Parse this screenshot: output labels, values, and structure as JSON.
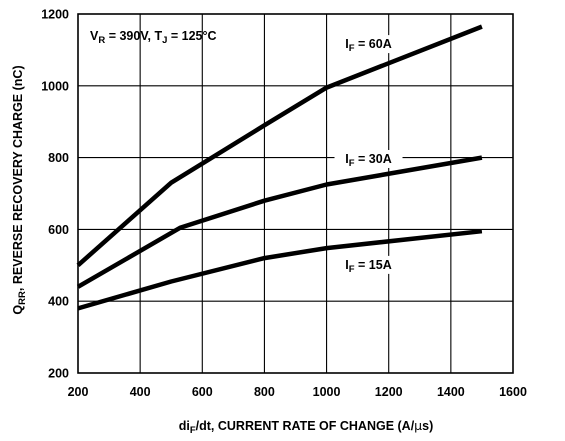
{
  "chart_data": {
    "type": "line",
    "title": "",
    "condition": {
      "v_sub": "R",
      "v_rest": " = 390V, T",
      "t_sub": "J",
      "t_rest": " = 125°C"
    },
    "xlabel": {
      "pre": "di",
      "sub": "F",
      "post": "/dt, CURRENT RATE OF CHANGE (A/",
      "mu": "µ",
      "end": "s)"
    },
    "ylabel": {
      "pre": "Q",
      "sub": "RR",
      "post": ", REVERSE RECOVERY CHARGE (nC)"
    },
    "xlim": [
      200,
      1600
    ],
    "ylim": [
      200,
      1200
    ],
    "x_ticks": [
      "200",
      "400",
      "600",
      "800",
      "1000",
      "1200",
      "1400",
      "1600"
    ],
    "y_ticks": [
      "200",
      "400",
      "600",
      "800",
      "1000",
      "1200"
    ],
    "grid": true,
    "series": [
      {
        "name": "IF = 60A",
        "label_pre": "I",
        "label_sub": "F",
        "label_post": " = 60A",
        "label_at": [
          1135,
          1105
        ],
        "x": [
          200,
          500,
          800,
          1000,
          1500
        ],
        "y": [
          500,
          730,
          890,
          995,
          1165
        ]
      },
      {
        "name": "IF = 30A",
        "label_pre": "I",
        "label_sub": "F",
        "label_post": " = 30A",
        "label_at": [
          1135,
          785
        ],
        "x": [
          200,
          530,
          800,
          1000,
          1500
        ],
        "y": [
          440,
          605,
          680,
          725,
          800
        ]
      },
      {
        "name": "IF = 15A",
        "label_pre": "I",
        "label_sub": "F",
        "label_post": " = 15A",
        "label_at": [
          1135,
          490
        ],
        "x": [
          200,
          500,
          800,
          1000,
          1500
        ],
        "y": [
          380,
          455,
          520,
          548,
          595
        ]
      }
    ]
  }
}
